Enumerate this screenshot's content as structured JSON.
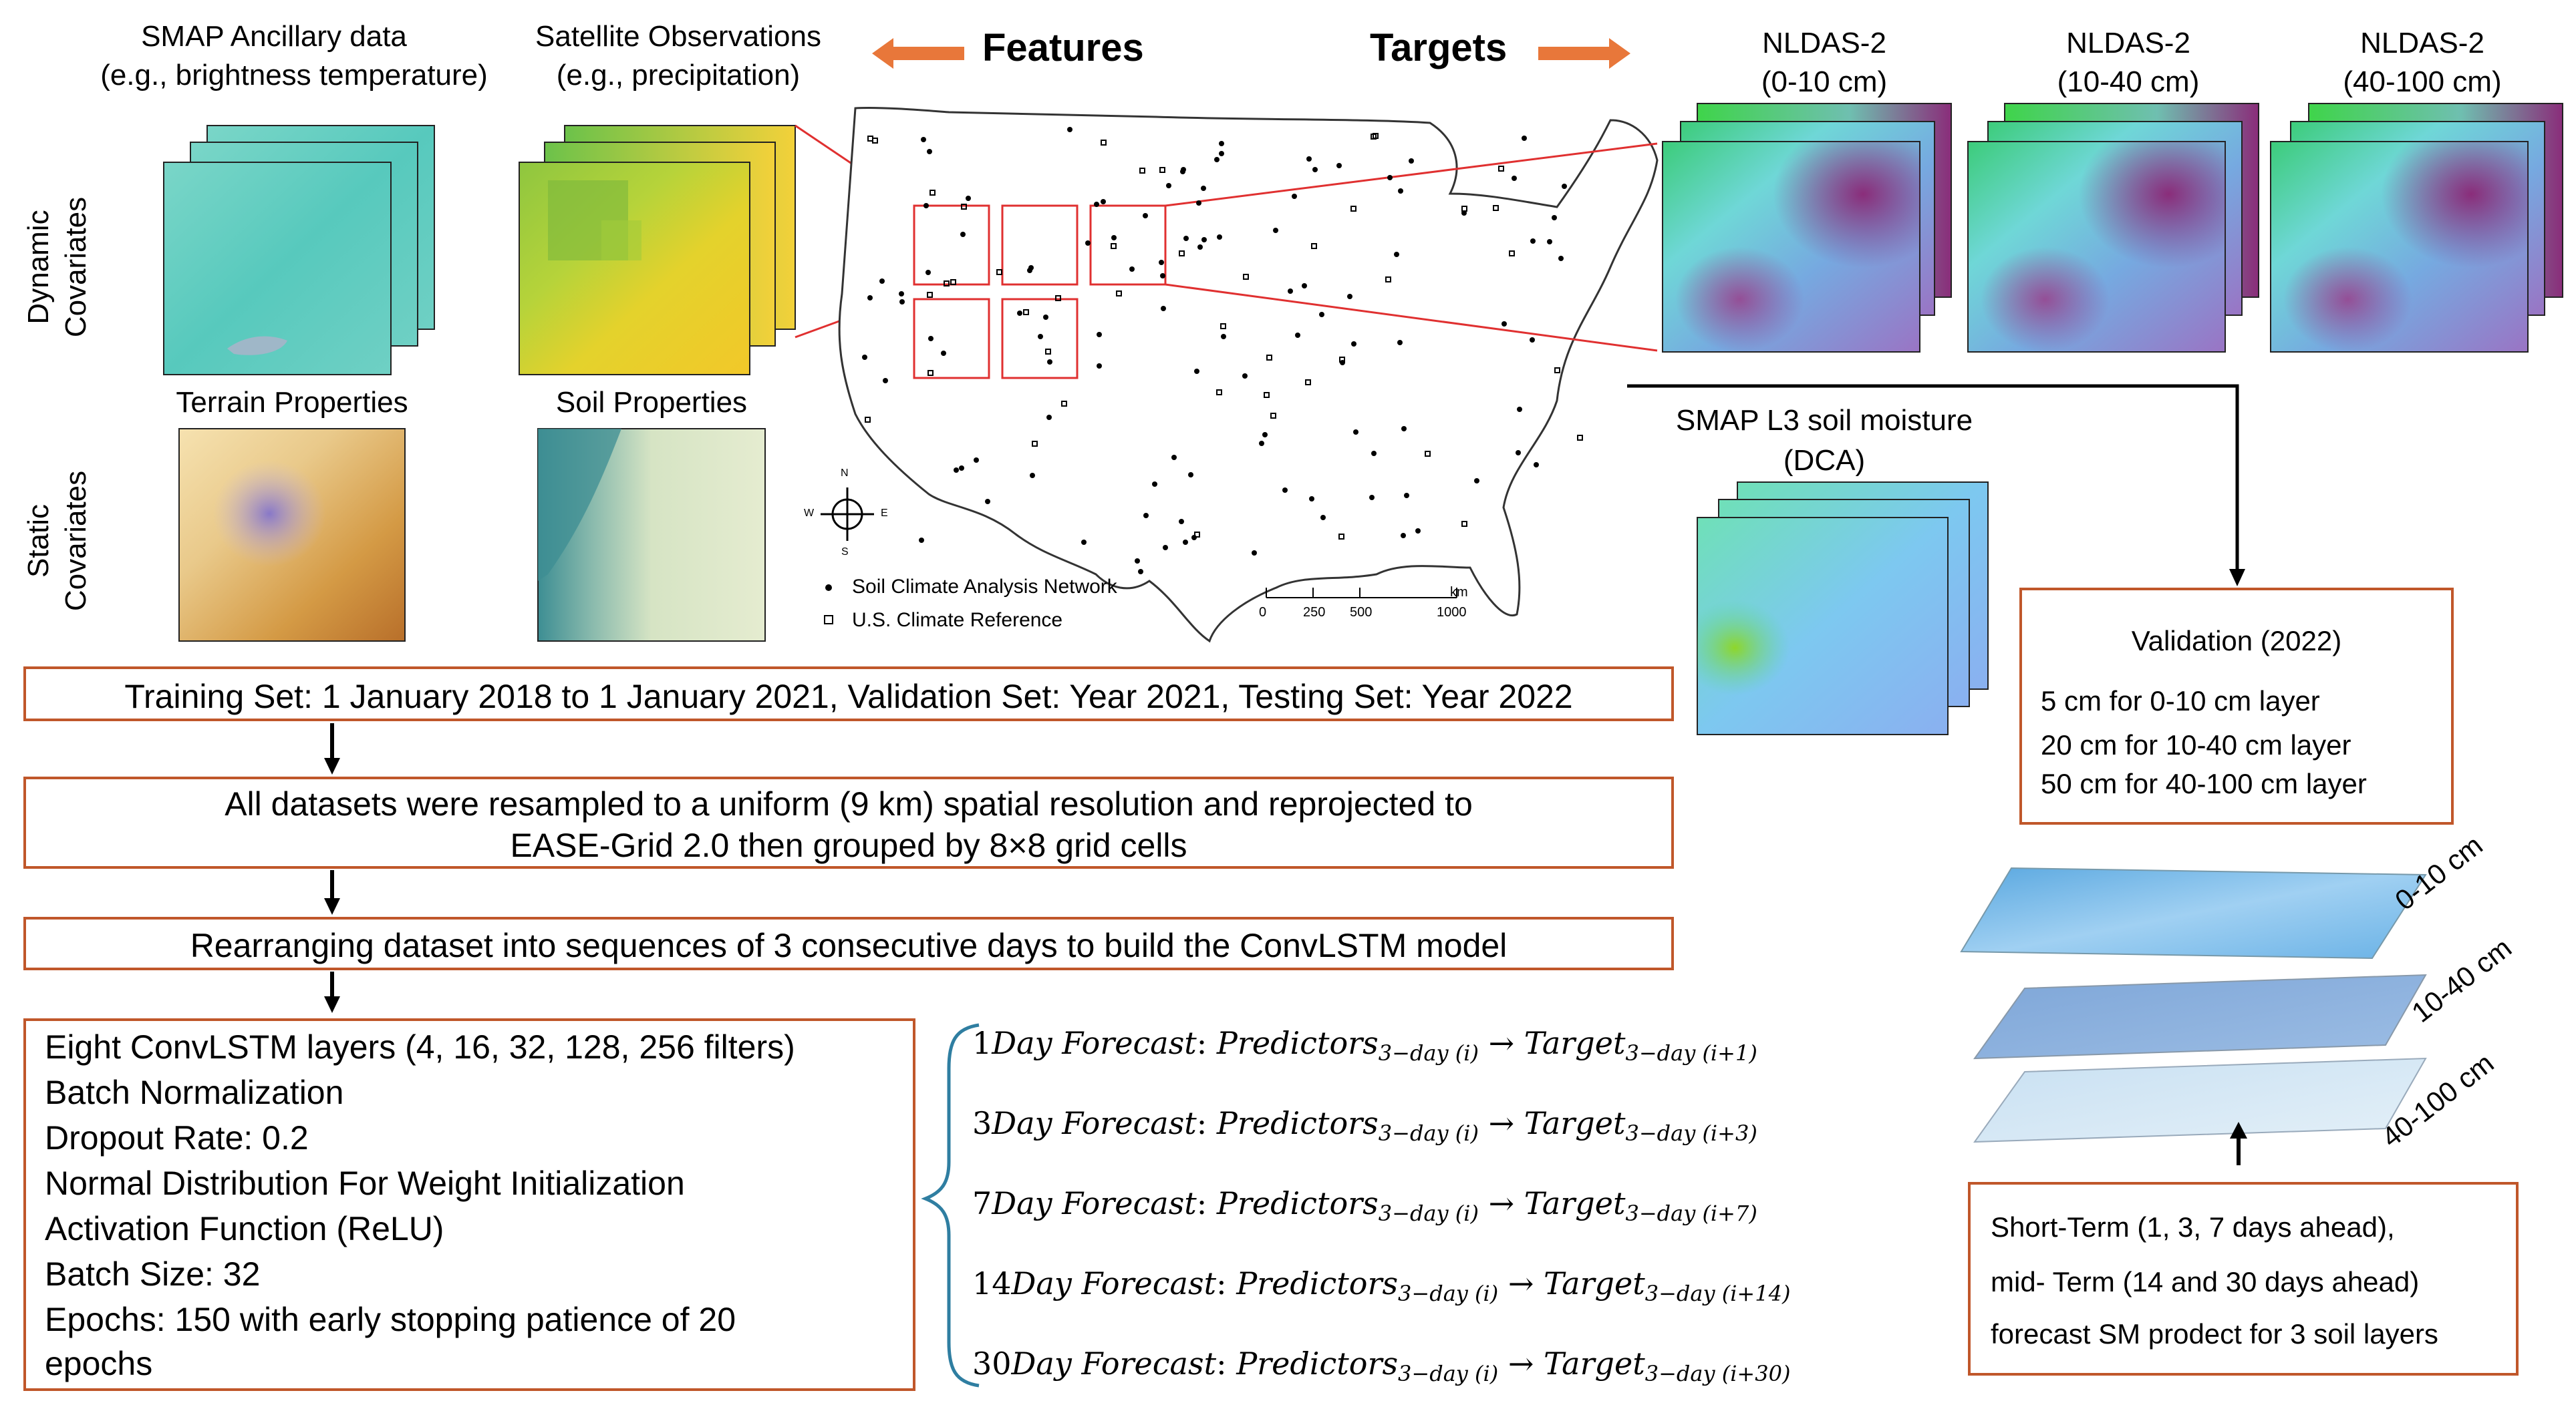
{
  "header": {
    "features_label": "Features",
    "targets_label": "Targets"
  },
  "inputs": {
    "smap_ancillary": {
      "title": "SMAP Ancillary data",
      "subtitle": "(e.g., brightness temperature)"
    },
    "satellite_obs": {
      "title": "Satellite Observations",
      "subtitle": "(e.g., precipitation)"
    },
    "terrain": {
      "title": "Terrain Properties"
    },
    "soil": {
      "title": "Soil Properties"
    },
    "dynamic_label": [
      "Dynamic",
      "Covariates"
    ],
    "static_label": [
      "Static",
      "Covariates"
    ]
  },
  "targets": [
    {
      "name": "NLDAS-2",
      "depth": "(0-10 cm)"
    },
    {
      "name": "NLDAS-2",
      "depth": "(10-40 cm)"
    },
    {
      "name": "NLDAS-2",
      "depth": "(40-100 cm)"
    }
  ],
  "smap_l3": {
    "title": "SMAP L3 soil moisture",
    "subtitle": "(DCA)"
  },
  "map": {
    "legend_scan": "Soil Climate Analysis Network",
    "legend_uscrn": "U.S. Climate Reference",
    "scale_ticks": [
      "0",
      "250",
      "500",
      "1000"
    ],
    "scale_unit": "km",
    "compass": {
      "n": "N",
      "s": "S",
      "e": "E",
      "w": "W"
    }
  },
  "validation": {
    "title": "Validation (2022)",
    "lines": [
      "5 cm for 0-10 cm layer",
      "20 cm for 10-40 cm layer",
      "50 cm for 40-100 cm layer"
    ]
  },
  "layers": [
    "0-10 cm",
    "10-40 cm",
    "40-100 cm"
  ],
  "forecast_box": {
    "lines": [
      "Short-Term (1, 3, 7 days ahead),",
      "mid- Term (14 and 30 days ahead)",
      "forecast SM prodect for 3 soil layers"
    ]
  },
  "steps": {
    "training": "Training Set: 1 January 2018 to 1 January 2021, Validation Set: Year 2021, Testing Set: Year 2022",
    "resample_1": "All datasets were resampled to a uniform (9 km) spatial resolution and reprojected to",
    "resample_2": "EASE-Grid 2.0 then grouped by 8×8 grid cells",
    "rearrange": "Rearranging dataset into sequences of 3 consecutive days to build the ConvLSTM model"
  },
  "model": {
    "lines": [
      "Eight ConvLSTM layers (4, 16, 32, 128, 256 filters)",
      "Batch Normalization",
      "Dropout Rate: 0.2",
      "Normal Distribution For Weight Initialization",
      "Activation Function (ReLU)",
      "Batch Size: 32",
      "Epochs: 150 with early stopping patience of 20",
      "epochs"
    ]
  },
  "forecasts": [
    {
      "num": "1",
      "label": "Day Forecast",
      "pred": "Predictors",
      "pred_sub": "3−day (i)",
      "target": "Target",
      "target_sub": "3−day (i+1)"
    },
    {
      "num": "3",
      "label": "Day Forecast",
      "pred": "Predictors",
      "pred_sub": "3−day (i)",
      "target": "Target",
      "target_sub": "3−day (i+3)"
    },
    {
      "num": "7",
      "label": "Day Forecast",
      "pred": "Predictors",
      "pred_sub": "3−day (i)",
      "target": "Target",
      "target_sub": "3−day (i+7)"
    },
    {
      "num": "14",
      "label": "Day Forecast",
      "pred": "Predictors",
      "pred_sub": "3−day (i)",
      "target": "Target",
      "target_sub": "3−day (i+14)"
    },
    {
      "num": "30",
      "label": "Day Forecast",
      "pred": "Predictors",
      "pred_sub": "3−day (i)",
      "target": "Target",
      "target_sub": "3−day (i+30)"
    }
  ],
  "colors": {
    "box_border": "#c0572a",
    "arrow_orange": "#e8773a",
    "map_red": "#e03030",
    "brace_blue": "#2f7ea1"
  }
}
